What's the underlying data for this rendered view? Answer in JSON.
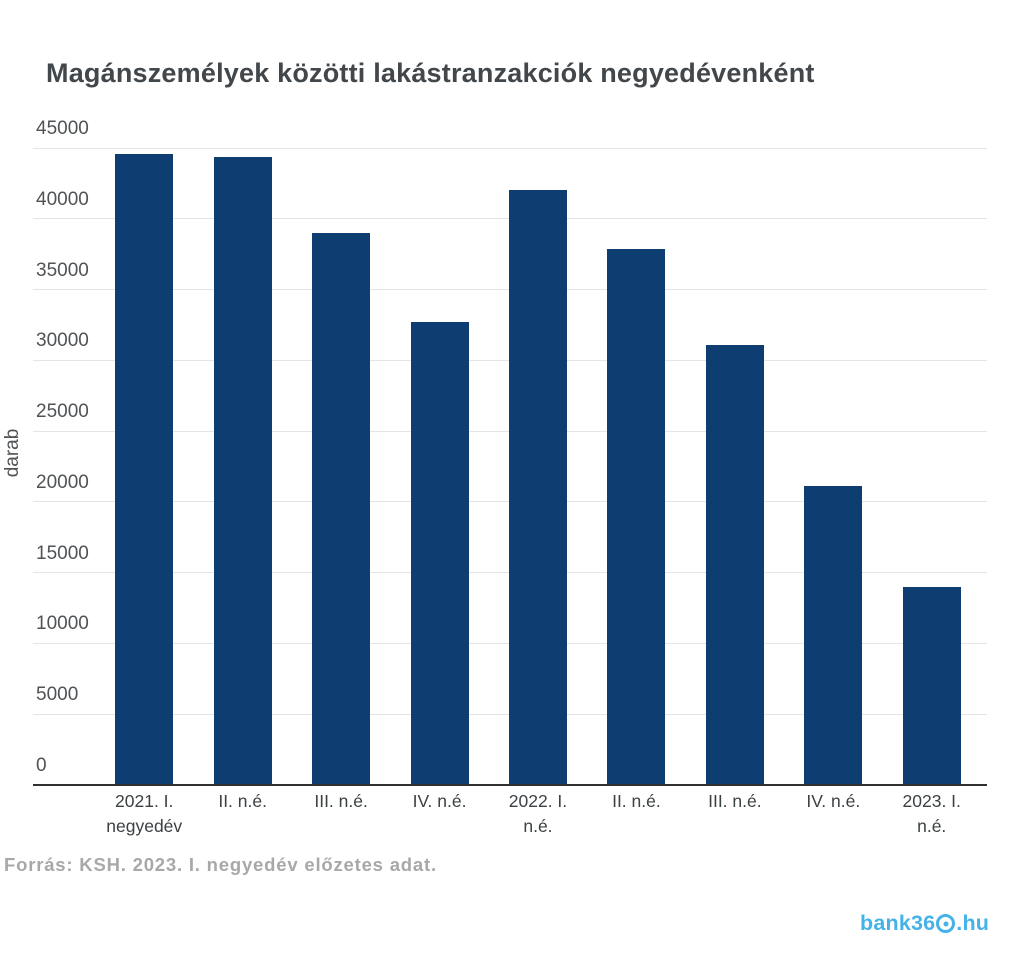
{
  "title": "Magánszemélyek közötti lakástranzakciók negyedévenként",
  "footer": {
    "source": "Forrás: KSH. 2023. I. negyedév előzetes adat."
  },
  "branding": {
    "logo_prefix": "bank36",
    "logo_suffix": ".hu",
    "logo_color": "#45b3e7"
  },
  "chart_data": {
    "type": "bar",
    "title": "Magánszemélyek közötti lakástranzakciók negyedévenként",
    "categories": [
      "2021. I.\nnegyedév",
      "II. n.é.",
      "III. n.é.",
      "IV. n.é.",
      "2022. I.\nn.é.",
      "II. n.é.",
      "III. n.é.",
      "IV. n.é.",
      "2023. I.\nn.é."
    ],
    "values": [
      44600,
      44400,
      39000,
      32700,
      42000,
      37900,
      31100,
      21100,
      14000
    ],
    "xlabel": "",
    "ylabel": "darab",
    "ylim": [
      0,
      45000
    ],
    "yticks": [
      0,
      5000,
      10000,
      15000,
      20000,
      25000,
      30000,
      35000,
      40000,
      45000
    ],
    "grid": true,
    "legend": "none",
    "bar_color": "#0e3d72",
    "gridline_color": "#e4e4e4"
  }
}
